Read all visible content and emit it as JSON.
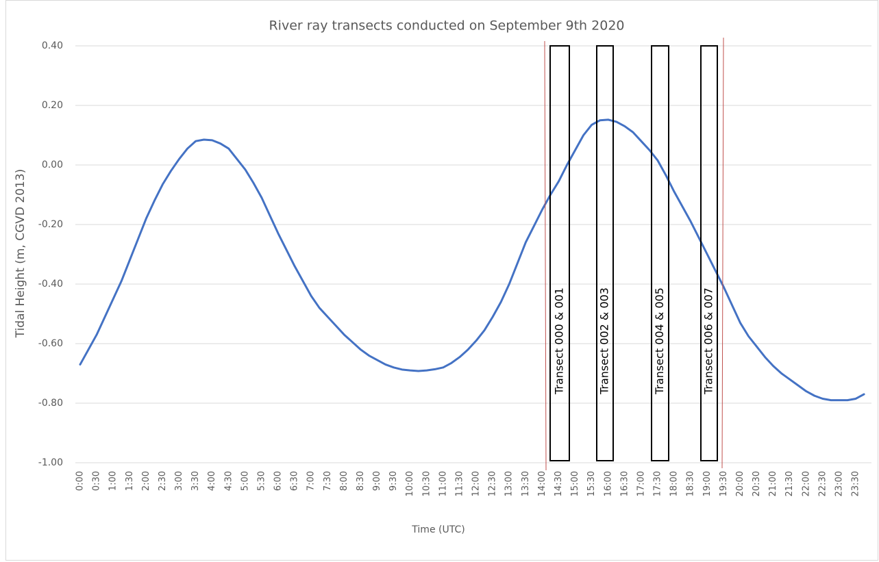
{
  "chart_data": {
    "type": "line",
    "title": "River ray transects conducted on September 9th 2020",
    "x_label": "Time (UTC)",
    "y_label": "Tidal Height (m, CGVD 2013)",
    "categories": [
      "0:00",
      null,
      "0:30",
      null,
      "1:00",
      null,
      "1:30",
      null,
      "2:00",
      null,
      "2:30",
      null,
      "3:00",
      null,
      "3:30",
      null,
      "4:00",
      null,
      "4:30",
      null,
      "5:00",
      null,
      "5:30",
      null,
      "6:00",
      null,
      "6:30",
      null,
      "7:00",
      null,
      "7:30",
      null,
      "8:00",
      null,
      "8:30",
      null,
      "9:00",
      null,
      "9:30",
      null,
      "10:00",
      null,
      "10:30",
      null,
      "11:00",
      null,
      "11:30",
      null,
      "12:00",
      null,
      "12:30",
      null,
      "13:00",
      null,
      "13:30",
      null,
      "14:00",
      null,
      "14:30",
      null,
      "15:00",
      null,
      "15:30",
      null,
      "16:00",
      null,
      "16:30",
      null,
      "17:00",
      null,
      "17:30",
      null,
      "18:00",
      null,
      "18:30",
      null,
      "19:00",
      null,
      "19:30",
      null,
      "20:00",
      null,
      "20:30",
      null,
      "21:00",
      null,
      "21:30",
      null,
      "22:00",
      null,
      "22:30",
      null,
      "23:00",
      null,
      "23:30",
      null
    ],
    "values": [
      -0.67,
      -0.62,
      -0.57,
      -0.51,
      -0.45,
      -0.39,
      -0.32,
      -0.25,
      -0.18,
      -0.12,
      -0.065,
      -0.02,
      0.02,
      0.055,
      0.08,
      0.085,
      0.083,
      0.072,
      0.055,
      0.02,
      -0.015,
      -0.06,
      -0.11,
      -0.17,
      -0.23,
      -0.285,
      -0.34,
      -0.39,
      -0.44,
      -0.48,
      -0.51,
      -0.54,
      -0.57,
      -0.595,
      -0.62,
      -0.64,
      -0.655,
      -0.67,
      -0.68,
      -0.687,
      -0.69,
      -0.692,
      -0.69,
      -0.686,
      -0.68,
      -0.665,
      -0.645,
      -0.62,
      -0.59,
      -0.555,
      -0.51,
      -0.46,
      -0.4,
      -0.33,
      -0.26,
      -0.205,
      -0.15,
      -0.1,
      -0.055,
      0.0,
      0.05,
      0.1,
      0.135,
      0.15,
      0.152,
      0.145,
      0.13,
      0.11,
      0.08,
      0.05,
      0.015,
      -0.035,
      -0.09,
      -0.14,
      -0.19,
      -0.245,
      -0.3,
      -0.355,
      -0.41,
      -0.47,
      -0.53,
      -0.575,
      -0.61,
      -0.645,
      -0.675,
      -0.7,
      -0.72,
      -0.74,
      -0.76,
      -0.775,
      -0.785,
      -0.79,
      -0.79,
      -0.79,
      -0.785,
      -0.77
    ],
    "color": "#4472c4",
    "ylim": [
      -1.0,
      0.4
    ],
    "yticks": [
      {
        "value": -1.0,
        "label": "-1.00"
      },
      {
        "value": -0.8,
        "label": "-0.80"
      },
      {
        "value": -0.6,
        "label": "-0.60"
      },
      {
        "value": -0.4,
        "label": "-0.40"
      },
      {
        "value": -0.2,
        "label": "-0.20"
      },
      {
        "value": 0.0,
        "label": "0.00"
      },
      {
        "value": 0.2,
        "label": "0.20"
      },
      {
        "value": 0.4,
        "label": "0.40"
      }
    ],
    "grid": true,
    "annotations": [
      "Transect 000 & 001",
      "Transect 002 & 003",
      "Transect 004 & 005",
      "Transect 006 & 007"
    ]
  }
}
